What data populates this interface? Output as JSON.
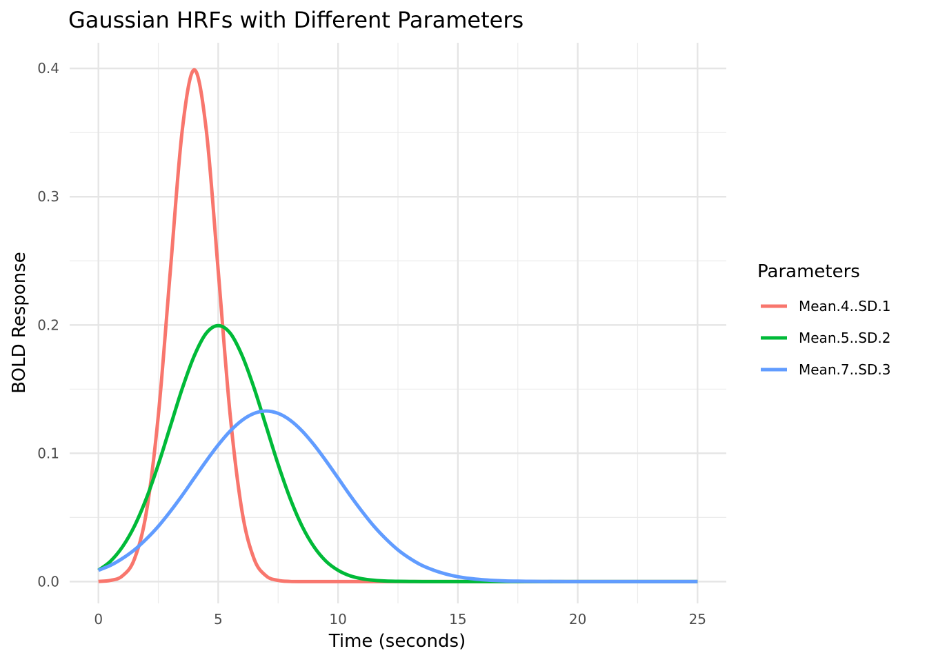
{
  "chart_data": {
    "type": "line",
    "title": "Gaussian HRFs with Different Parameters",
    "xlabel": "Time (seconds)",
    "ylabel": "BOLD Response",
    "xlim": [
      -1.2,
      26.2
    ],
    "ylim": [
      -0.017,
      0.42
    ],
    "x_ticks": [
      0,
      5,
      10,
      15,
      20,
      25
    ],
    "x_tick_labels": [
      "0",
      "5",
      "10",
      "15",
      "20",
      "25"
    ],
    "y_ticks": [
      0,
      0.1,
      0.2,
      0.3,
      0.4
    ],
    "y_tick_labels": [
      "0.0",
      "0.1",
      "0.2",
      "0.3",
      "0.4"
    ],
    "grid": true,
    "legend": {
      "title": "Parameters",
      "position": "right"
    },
    "x": [
      0,
      0.5,
      1,
      1.5,
      2,
      2.5,
      3,
      3.5,
      4,
      4.5,
      5,
      5.5,
      6,
      6.5,
      7,
      7.5,
      8,
      8.5,
      9,
      9.5,
      10,
      10.5,
      11,
      11.5,
      12,
      12.5,
      13,
      13.5,
      14,
      14.5,
      15,
      15.5,
      16,
      16.5,
      17,
      17.5,
      18,
      18.5,
      19,
      19.5,
      20,
      20.5,
      21,
      21.5,
      22,
      22.5,
      23,
      23.5,
      24,
      24.5,
      25
    ],
    "series": [
      {
        "name": "Mean.4..SD.1",
        "color": "#F8766D",
        "values": [
          0.0001,
          0.0009,
          0.0044,
          0.0175,
          0.054,
          0.1295,
          0.242,
          0.3521,
          0.3989,
          0.3521,
          0.242,
          0.1295,
          0.054,
          0.0175,
          0.0044,
          0.0009,
          0.0001,
          0,
          0,
          0,
          0,
          0,
          0,
          0,
          0,
          0,
          0,
          0,
          0,
          0,
          0,
          0,
          0,
          0,
          0,
          0,
          0,
          0,
          0,
          0,
          0,
          0,
          0,
          0,
          0,
          0,
          0,
          0,
          0,
          0,
          0
        ]
      },
      {
        "name": "Mean.5..SD.2",
        "color": "#00BA38",
        "values": [
          0.0088,
          0.0158,
          0.027,
          0.0431,
          0.0648,
          0.0913,
          0.121,
          0.1506,
          0.176,
          0.1936,
          0.1995,
          0.1936,
          0.176,
          0.1506,
          0.121,
          0.0913,
          0.0648,
          0.0431,
          0.027,
          0.0158,
          0.0088,
          0.0045,
          0.0022,
          0.001,
          0.0004,
          0.0002,
          0.0001,
          0,
          0,
          0,
          0,
          0,
          0,
          0,
          0,
          0,
          0,
          0,
          0,
          0,
          0,
          0,
          0,
          0,
          0,
          0,
          0,
          0,
          0,
          0,
          0
        ]
      },
      {
        "name": "Mean.7..SD.3",
        "color": "#619CFF",
        "values": [
          0.0088,
          0.0126,
          0.018,
          0.0247,
          0.0332,
          0.0431,
          0.0547,
          0.0673,
          0.0807,
          0.094,
          0.1065,
          0.1174,
          0.1258,
          0.1311,
          0.133,
          0.1311,
          0.1258,
          0.1174,
          0.1065,
          0.094,
          0.0807,
          0.0673,
          0.0547,
          0.0431,
          0.0332,
          0.0247,
          0.018,
          0.0126,
          0.0088,
          0.0059,
          0.0038,
          0.0024,
          0.0015,
          0.0009,
          0.0005,
          0.0003,
          0.0002,
          0.0001,
          0.0001,
          0,
          0,
          0,
          0,
          0,
          0,
          0,
          0,
          0,
          0,
          0,
          0
        ]
      }
    ]
  }
}
